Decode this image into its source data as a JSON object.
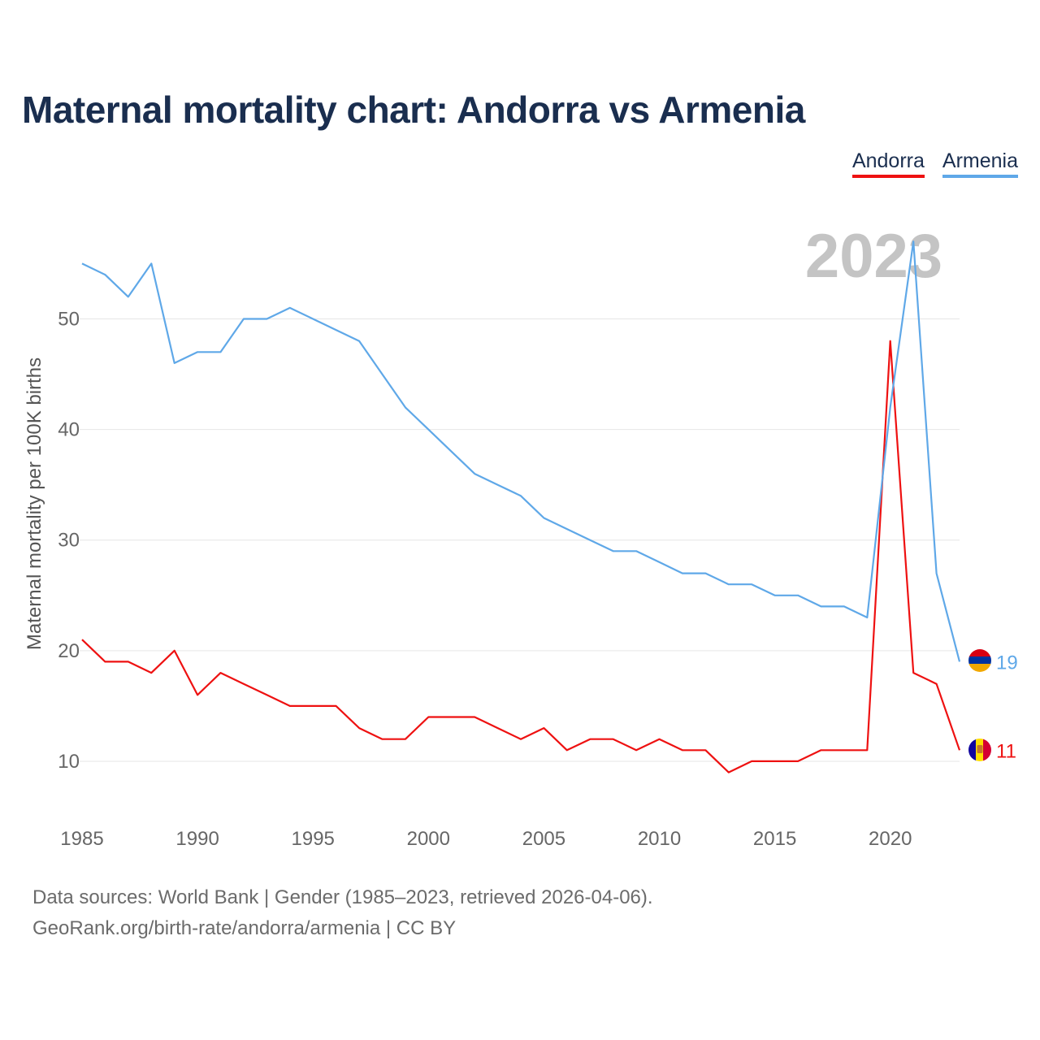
{
  "title": "Maternal mortality chart: Andorra vs Armenia",
  "footer": {
    "sources": "Data sources: World Bank | Gender (1985–2023, retrieved 2026-04-06).",
    "credit": "GeoRank.org/birth-rate/andorra/armenia | CC BY"
  },
  "chart_data": {
    "type": "line",
    "year_label": "2023",
    "ylabel": "Maternal mortality per 100K births",
    "ylim": [
      5,
      59
    ],
    "xlim": [
      1985,
      2023
    ],
    "x_ticks": [
      1985,
      1990,
      1995,
      2000,
      2005,
      2010,
      2015,
      2020
    ],
    "y_ticks": [
      10,
      20,
      30,
      40,
      50
    ],
    "grid": true,
    "legend_position": "top-right",
    "x": [
      1985,
      1986,
      1987,
      1988,
      1989,
      1990,
      1991,
      1992,
      1993,
      1994,
      1995,
      1996,
      1997,
      1998,
      1999,
      2000,
      2001,
      2002,
      2003,
      2004,
      2005,
      2006,
      2007,
      2008,
      2009,
      2010,
      2011,
      2012,
      2013,
      2014,
      2015,
      2016,
      2017,
      2018,
      2019,
      2020,
      2021,
      2022,
      2023
    ],
    "series": [
      {
        "name": "Andorra",
        "color": "#ee1111",
        "end_label": "11",
        "flag_icon": "andorra-flag-icon",
        "values": [
          21,
          19,
          19,
          18,
          20,
          16,
          18,
          17,
          16,
          15,
          15,
          15,
          13,
          12,
          12,
          14,
          14,
          14,
          13,
          12,
          13,
          11,
          12,
          12,
          11,
          12,
          11,
          11,
          9,
          10,
          10,
          10,
          11,
          11,
          11,
          48,
          18,
          17,
          11
        ]
      },
      {
        "name": "Armenia",
        "color": "#5fa8e8",
        "end_label": "19",
        "flag_icon": "armenia-flag-icon",
        "values": [
          55,
          54,
          52,
          55,
          46,
          47,
          47,
          50,
          50,
          51,
          50,
          49,
          48,
          45,
          42,
          40,
          38,
          36,
          35,
          34,
          32,
          31,
          30,
          29,
          29,
          28,
          27,
          27,
          26,
          26,
          25,
          25,
          24,
          24,
          23,
          42,
          57,
          27,
          19
        ]
      }
    ]
  }
}
